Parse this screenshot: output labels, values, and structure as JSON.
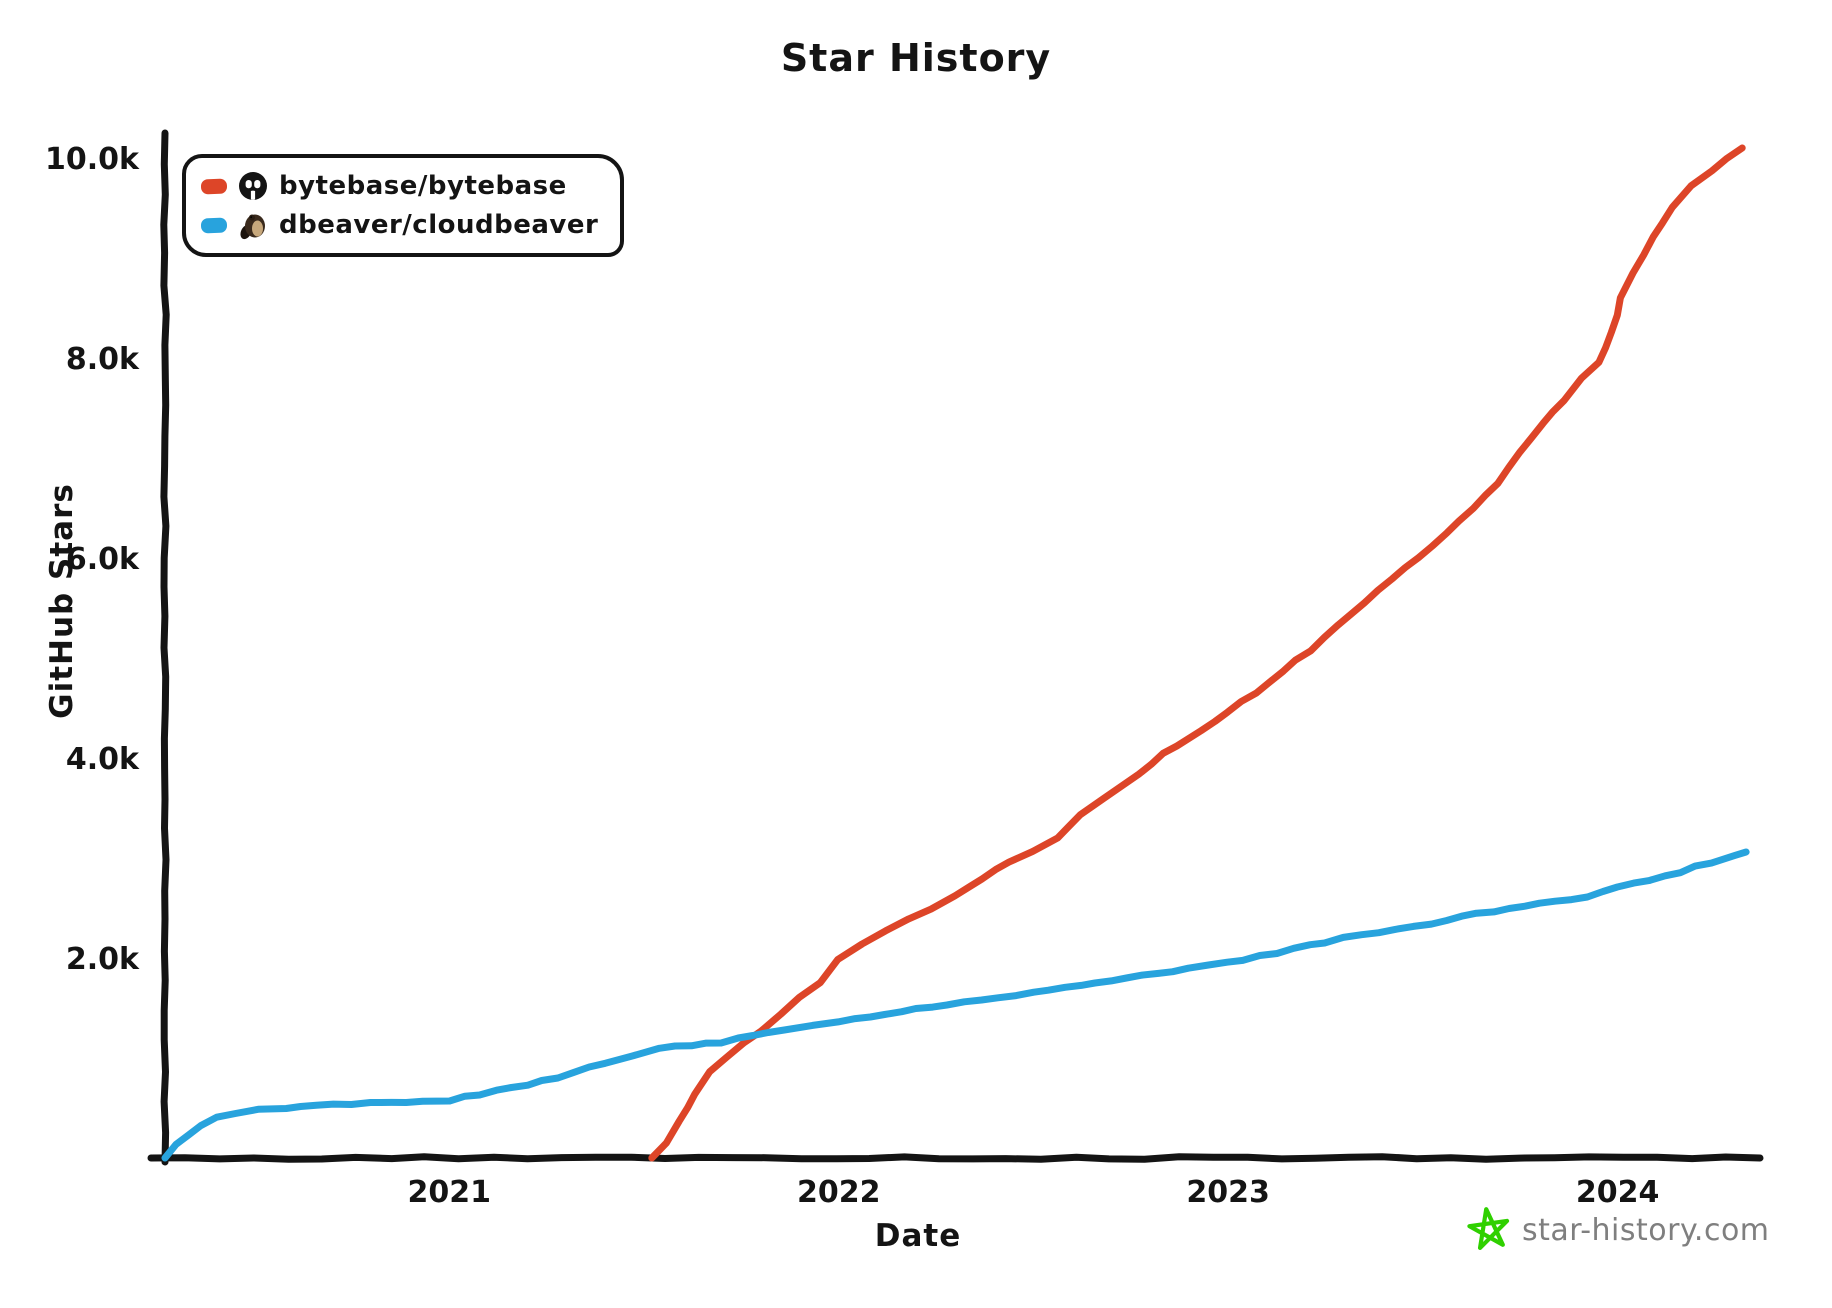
{
  "page": {
    "title": "Star History"
  },
  "legend": {
    "items": [
      {
        "label": "bytebase/bytebase",
        "color": "#dd4528",
        "icon": "bytebase-avatar-icon"
      },
      {
        "label": "dbeaver/cloudbeaver",
        "color": "#28a3dd",
        "icon": "beaver-avatar-icon"
      }
    ]
  },
  "watermark": {
    "text": "star-history.com",
    "star_color": "#2fd000",
    "text_color": "#7f7f7f"
  },
  "chart_data": {
    "type": "line",
    "title": "Star History",
    "xlabel": "Date",
    "ylabel": "GitHub Stars",
    "x_range": [
      2020.27,
      2024.34
    ],
    "y_range": [
      0,
      10100
    ],
    "grid": false,
    "legend_position": "top-left",
    "axis_color": "#141414",
    "x_ticks": [
      {
        "value": 2021,
        "label": "2021"
      },
      {
        "value": 2022,
        "label": "2022"
      },
      {
        "value": 2023,
        "label": "2023"
      },
      {
        "value": 2024,
        "label": "2024"
      }
    ],
    "y_ticks": [
      {
        "value": 2000,
        "label": "2.0k"
      },
      {
        "value": 4000,
        "label": "4.0k"
      },
      {
        "value": 6000,
        "label": "6.0k"
      },
      {
        "value": 8000,
        "label": "8.0k"
      },
      {
        "value": 10000,
        "label": "10.0k"
      }
    ],
    "series": [
      {
        "key": "bytebase",
        "name": "bytebase/bytebase",
        "color": "#dd4528",
        "points": [
          [
            2021.52,
            0
          ],
          [
            2021.555,
            140
          ],
          [
            2021.59,
            360
          ],
          [
            2021.63,
            640
          ],
          [
            2021.67,
            860
          ],
          [
            2021.71,
            1000
          ],
          [
            2021.76,
            1160
          ],
          [
            2021.8,
            1270
          ],
          [
            2021.85,
            1440
          ],
          [
            2021.9,
            1600
          ],
          [
            2021.95,
            1760
          ],
          [
            2022.0,
            1980
          ],
          [
            2022.06,
            2130
          ],
          [
            2022.12,
            2280
          ],
          [
            2022.18,
            2400
          ],
          [
            2022.24,
            2500
          ],
          [
            2022.3,
            2620
          ],
          [
            2022.37,
            2800
          ],
          [
            2022.44,
            2960
          ],
          [
            2022.5,
            3070
          ],
          [
            2022.56,
            3200
          ],
          [
            2022.62,
            3420
          ],
          [
            2022.68,
            3600
          ],
          [
            2022.74,
            3750
          ],
          [
            2022.8,
            3940
          ],
          [
            2022.87,
            4130
          ],
          [
            2022.93,
            4280
          ],
          [
            2023.0,
            4460
          ],
          [
            2023.07,
            4650
          ],
          [
            2023.14,
            4870
          ],
          [
            2023.21,
            5080
          ],
          [
            2023.28,
            5320
          ],
          [
            2023.35,
            5560
          ],
          [
            2023.42,
            5800
          ],
          [
            2023.49,
            6000
          ],
          [
            2023.56,
            6250
          ],
          [
            2023.63,
            6500
          ],
          [
            2023.69,
            6750
          ],
          [
            2023.75,
            7050
          ],
          [
            2023.81,
            7350
          ],
          [
            2023.86,
            7580
          ],
          [
            2023.91,
            7800
          ],
          [
            2023.95,
            7950
          ],
          [
            2023.985,
            8250
          ],
          [
            2024.01,
            8600
          ],
          [
            2024.04,
            8850
          ],
          [
            2024.09,
            9200
          ],
          [
            2024.14,
            9500
          ],
          [
            2024.19,
            9720
          ],
          [
            2024.24,
            9880
          ],
          [
            2024.28,
            9990
          ],
          [
            2024.32,
            10100
          ]
        ]
      },
      {
        "key": "cloudbeaver",
        "name": "dbeaver/cloudbeaver",
        "color": "#28a3dd",
        "points": [
          [
            2020.27,
            0
          ],
          [
            2020.3,
            130
          ],
          [
            2020.33,
            240
          ],
          [
            2020.36,
            330
          ],
          [
            2020.4,
            400
          ],
          [
            2020.45,
            450
          ],
          [
            2020.51,
            480
          ],
          [
            2020.58,
            505
          ],
          [
            2020.66,
            525
          ],
          [
            2020.75,
            545
          ],
          [
            2020.85,
            555
          ],
          [
            2020.93,
            560
          ],
          [
            2021.0,
            575
          ],
          [
            2021.08,
            640
          ],
          [
            2021.16,
            700
          ],
          [
            2021.24,
            770
          ],
          [
            2021.32,
            850
          ],
          [
            2021.4,
            950
          ],
          [
            2021.47,
            1030
          ],
          [
            2021.54,
            1090
          ],
          [
            2021.62,
            1130
          ],
          [
            2021.7,
            1160
          ],
          [
            2021.78,
            1230
          ],
          [
            2021.86,
            1280
          ],
          [
            2021.93,
            1320
          ],
          [
            2022.0,
            1365
          ],
          [
            2022.08,
            1410
          ],
          [
            2022.16,
            1460
          ],
          [
            2022.24,
            1510
          ],
          [
            2022.32,
            1555
          ],
          [
            2022.41,
            1600
          ],
          [
            2022.5,
            1650
          ],
          [
            2022.58,
            1700
          ],
          [
            2022.66,
            1750
          ],
          [
            2022.74,
            1800
          ],
          [
            2022.82,
            1850
          ],
          [
            2022.9,
            1890
          ],
          [
            2023.0,
            1950
          ],
          [
            2023.08,
            2020
          ],
          [
            2023.17,
            2090
          ],
          [
            2023.25,
            2160
          ],
          [
            2023.34,
            2230
          ],
          [
            2023.43,
            2290
          ],
          [
            2023.52,
            2350
          ],
          [
            2023.6,
            2410
          ],
          [
            2023.68,
            2470
          ],
          [
            2023.76,
            2520
          ],
          [
            2023.84,
            2560
          ],
          [
            2023.92,
            2620
          ],
          [
            2024.0,
            2710
          ],
          [
            2024.08,
            2770
          ],
          [
            2024.16,
            2860
          ],
          [
            2024.24,
            2960
          ],
          [
            2024.3,
            3030
          ],
          [
            2024.33,
            3060
          ]
        ]
      }
    ]
  }
}
